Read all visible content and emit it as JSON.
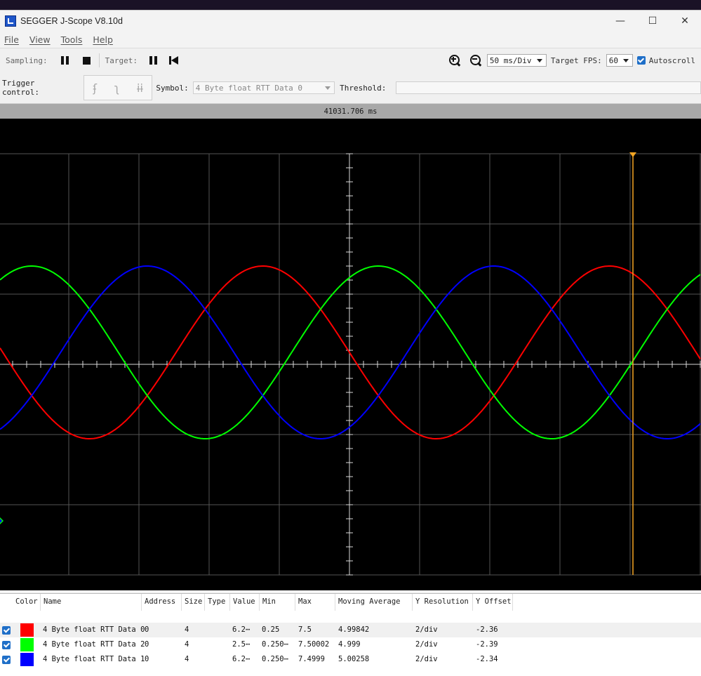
{
  "window": {
    "title": "SEGGER J-Scope V8.10d",
    "controls": {
      "minimize": "—",
      "maximize": "☐",
      "close": "✕"
    }
  },
  "menu": [
    "File",
    "View",
    "Tools",
    "Help"
  ],
  "toolbar": {
    "sampling_label": "Sampling:",
    "target_label": "Target:",
    "time_div": "50 ms/Div",
    "fps_label": "Target FPS:",
    "fps_value": "60",
    "autoscroll_label": "Autoscroll",
    "autoscroll_checked": true
  },
  "trigger": {
    "label": "Trigger control:",
    "icons": [
      "ʄ",
      "ʅ",
      "ɨɨ"
    ],
    "symbol_label": "Symbol:",
    "symbol_value": "4 Byte float RTT Data 0",
    "threshold_label": "Threshold:",
    "threshold_value": ""
  },
  "timebar": {
    "time": "41031.706 ms"
  },
  "scope": {
    "background": "#000000",
    "cursor_color": "#f5a623",
    "signals": [
      {
        "name": "4 Byte float RTT Data 0",
        "color": "#ff0000",
        "period_divs": 4.94,
        "amplitude": 2.5,
        "offset": 0.0,
        "phase_deg": 180
      },
      {
        "name": "4 Byte float RTT Data 2",
        "color": "#00ff00",
        "period_divs": 4.94,
        "amplitude": 2.5,
        "offset": 0.0,
        "phase_deg": 60
      },
      {
        "name": "4 Byte float RTT Data 1",
        "color": "#0000ff",
        "period_divs": 4.94,
        "amplitude": 2.5,
        "offset": 0.0,
        "phase_deg": -60
      }
    ]
  },
  "table": {
    "headers": [
      "Color",
      "Name",
      "Address",
      "Size",
      "Type",
      "Value",
      "Min",
      "Max",
      "Moving Average",
      "Y Resolution",
      "Y Offset"
    ],
    "rows": [
      {
        "checked": true,
        "color": "#ff0000",
        "name": "4 Byte float RTT Data 0",
        "address": "0",
        "size": "4",
        "type": "",
        "value": "6.2⋯",
        "min": "0.25",
        "max": "7.5",
        "moving_average": "4.99842",
        "y_resolution": "2/div",
        "y_offset": "-2.36"
      },
      {
        "checked": true,
        "color": "#00ff00",
        "name": "4 Byte float RTT Data 2",
        "address": "0",
        "size": "4",
        "type": "",
        "value": "2.5⋯",
        "min": "0.250⋯",
        "max": "7.50002",
        "moving_average": "4.999",
        "y_resolution": "2/div",
        "y_offset": "-2.39"
      },
      {
        "checked": true,
        "color": "#0000ff",
        "name": "4 Byte float RTT Data 1",
        "address": "0",
        "size": "4",
        "type": "",
        "value": "6.2⋯",
        "min": "0.250⋯",
        "max": "7.4999",
        "moving_average": "5.00258",
        "y_resolution": "2/div",
        "y_offset": "-2.34"
      }
    ]
  }
}
